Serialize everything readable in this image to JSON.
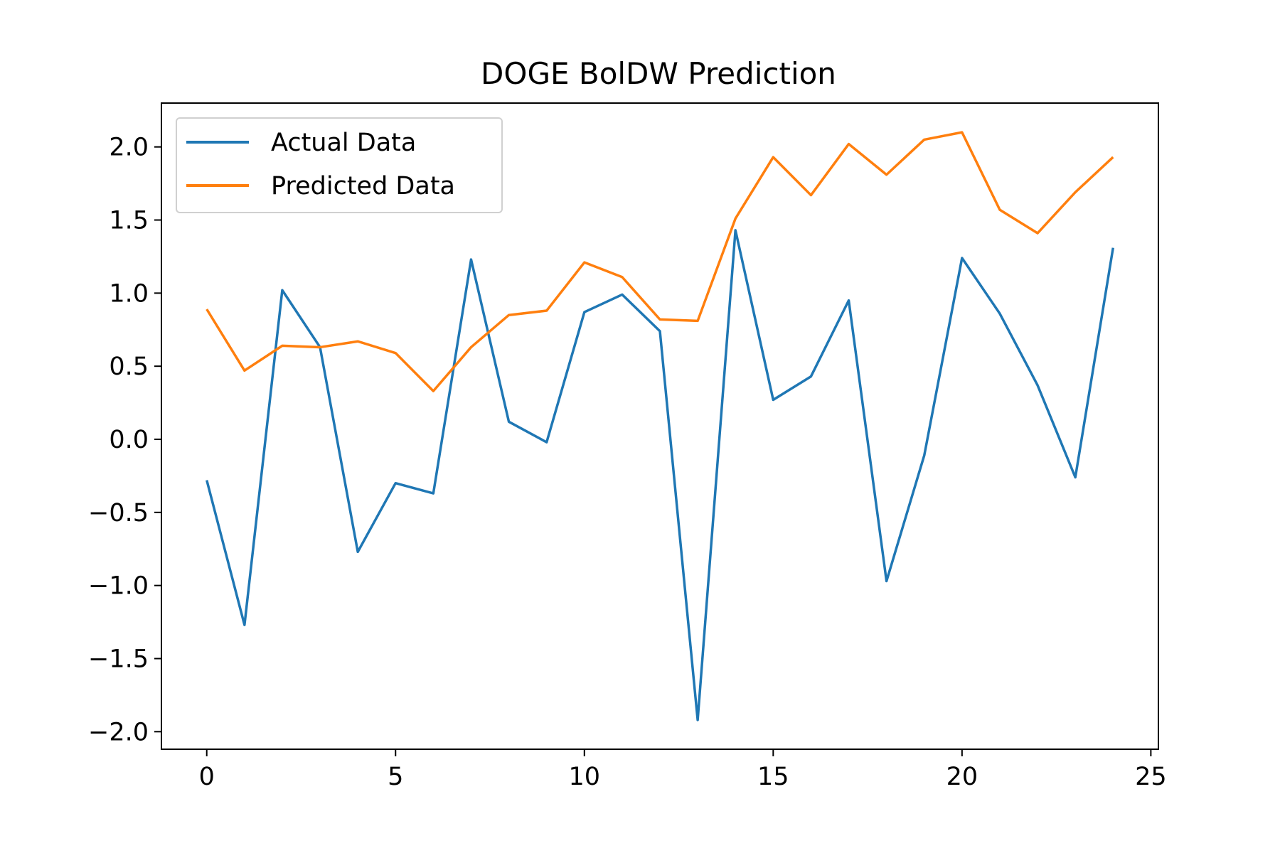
{
  "chart_data": {
    "type": "line",
    "title": "DOGE BolDW Prediction",
    "xlabel": "",
    "ylabel": "",
    "xlim": [
      -1.2,
      25.2
    ],
    "ylim": [
      -2.12,
      2.3
    ],
    "x_ticks": [
      0,
      5,
      10,
      15,
      20,
      25
    ],
    "y_ticks": [
      -2.0,
      -1.5,
      -1.0,
      -0.5,
      0.0,
      0.5,
      1.0,
      1.5,
      2.0
    ],
    "x_tick_labels": [
      "0",
      "5",
      "10",
      "15",
      "20",
      "25"
    ],
    "y_tick_labels": [
      "−2.0",
      "−1.5",
      "−1.0",
      "−0.5",
      "0.0",
      "0.5",
      "1.0",
      "1.5",
      "2.0"
    ],
    "grid": false,
    "legend_position": "top-left",
    "x": [
      0,
      1,
      2,
      3,
      4,
      5,
      6,
      7,
      8,
      9,
      10,
      11,
      12,
      13,
      14,
      15,
      16,
      17,
      18,
      19,
      20,
      21,
      22,
      23,
      24
    ],
    "series": [
      {
        "name": "Actual Data",
        "color": "#1f77b4",
        "values": [
          -0.28,
          -1.27,
          1.02,
          0.63,
          -0.77,
          -0.3,
          -0.37,
          1.23,
          0.12,
          -0.02,
          0.87,
          0.99,
          0.74,
          -1.92,
          1.43,
          0.27,
          0.43,
          0.95,
          -0.97,
          -0.11,
          1.24,
          0.86,
          0.37,
          -0.26,
          1.31
        ]
      },
      {
        "name": "Predicted Data",
        "color": "#ff7f0e",
        "values": [
          0.89,
          0.47,
          0.64,
          0.63,
          0.67,
          0.59,
          0.33,
          0.63,
          0.85,
          0.88,
          1.21,
          1.11,
          0.82,
          0.81,
          1.51,
          1.93,
          1.67,
          2.02,
          1.81,
          2.05,
          2.1,
          1.57,
          1.41,
          1.69,
          1.93
        ]
      }
    ]
  }
}
